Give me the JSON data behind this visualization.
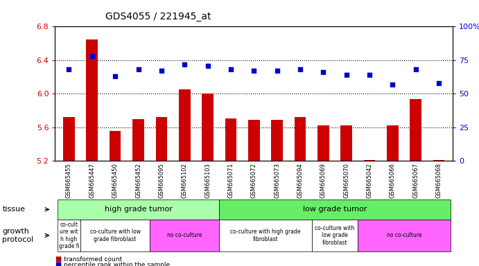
{
  "title": "GDS4055 / 221945_at",
  "samples": [
    "GSM665455",
    "GSM665447",
    "GSM665450",
    "GSM665452",
    "GSM665095",
    "GSM665102",
    "GSM665103",
    "GSM665071",
    "GSM665072",
    "GSM665073",
    "GSM665094",
    "GSM665069",
    "GSM665070",
    "GSM665042",
    "GSM665066",
    "GSM665067",
    "GSM665068"
  ],
  "bar_values": [
    5.72,
    6.65,
    5.56,
    5.7,
    5.72,
    6.05,
    6.0,
    5.71,
    5.69,
    5.69,
    5.72,
    5.62,
    5.62,
    5.21,
    5.62,
    5.94,
    5.21
  ],
  "dot_values": [
    68,
    78,
    63,
    68,
    67,
    72,
    71,
    68,
    67,
    67,
    68,
    66,
    64,
    64,
    57,
    68,
    58
  ],
  "ylim_left": [
    5.2,
    6.8
  ],
  "ylim_right": [
    0,
    100
  ],
  "bar_color": "#cc0000",
  "dot_color": "#0000cc",
  "bar_width": 0.5,
  "tissue_row": [
    {
      "label": "high grade tumor",
      "start": 0,
      "end": 6,
      "color": "#aaffaa"
    },
    {
      "label": "low grade tumor",
      "start": 7,
      "end": 16,
      "color": "#66ee66"
    }
  ],
  "growth_row": [
    {
      "label": "co-cult\nure wit\nh high\ngrade fi",
      "start": 0,
      "end": 0,
      "color": "#ffffff"
    },
    {
      "label": "co-culture with low\ngrade fibroblast",
      "start": 1,
      "end": 3,
      "color": "#ffffff"
    },
    {
      "label": "no co-culture",
      "start": 4,
      "end": 6,
      "color": "#ff66ff"
    },
    {
      "label": "co-culture with high grade\nfibroblast",
      "start": 7,
      "end": 10,
      "color": "#ffffff"
    },
    {
      "label": "co-culture with\nlow grade\nfibroblast",
      "start": 11,
      "end": 12,
      "color": "#ffffff"
    },
    {
      "label": "no co-culture",
      "start": 13,
      "end": 16,
      "color": "#ff66ff"
    }
  ],
  "left_yticks": [
    5.2,
    5.6,
    6.0,
    6.4,
    6.8
  ],
  "right_yticks": [
    0,
    25,
    50,
    75,
    100
  ],
  "right_yticklabels": [
    "0",
    "25",
    "50",
    "75",
    "100%"
  ],
  "hline_values": [
    5.6,
    6.0,
    6.4
  ],
  "plot_bg_color": "#ffffff"
}
